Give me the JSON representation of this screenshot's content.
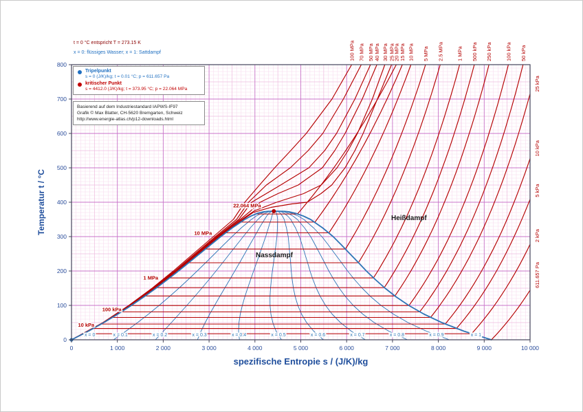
{
  "header_notes": {
    "line1": "t = 0 °C entspricht T = 273.15 K",
    "line2": "x = 0: flüssiges Wasser;   x = 1: Sattdampf"
  },
  "legend": {
    "triple": {
      "name": "Tripelpunkt",
      "detail": "s = 0 (J/K)/kg;  t = 0.01 °C;  p = 611.657 Pa",
      "color": "#1f6fc0"
    },
    "critical": {
      "name": "kritischer Punkt",
      "detail": "s = 4412.0 (J/K)/kg;  t = 373.95 °C;  p = 22.064 MPa",
      "color": "#c00000"
    }
  },
  "attribution": {
    "line1": "Basierend auf dem Industriestandard IAPWS-IF97",
    "line2": "Grafik © Max Blatter, CH-5620 Bremgarten, Schweiz",
    "line3": "http://www.energie-atlas.ch/p12-downloads.html"
  },
  "region_labels": {
    "superheated": "Heißdampf",
    "wet": "Nassdampf"
  },
  "chart_data": {
    "type": "line",
    "xlabel": "spezifische Entropie  s / (J/K)/kg",
    "ylabel": "Temperatur  t / °C",
    "xlim": [
      0,
      10000
    ],
    "ylim": [
      0,
      800
    ],
    "x_ticks": [
      0,
      1000,
      2000,
      3000,
      4000,
      5000,
      6000,
      7000,
      8000,
      9000,
      10000
    ],
    "x_tick_labels": [
      "0",
      "1 000",
      "2 000",
      "3 000",
      "4 000",
      "5 000",
      "6 000",
      "7 000",
      "8 000",
      "9 000",
      "10 000"
    ],
    "y_ticks": [
      0,
      100,
      200,
      300,
      400,
      500,
      600,
      700,
      800
    ],
    "y_tick_labels": [
      "0",
      "100",
      "200",
      "300",
      "400",
      "500",
      "600",
      "700",
      "800"
    ],
    "grid": true,
    "colors": {
      "isobar": "#b40000",
      "saturation": "#2e75b6",
      "grid_minor": "#f7d9ee",
      "grid_mid": "#eebbdf",
      "grid_major": "#c873c8",
      "axis_text": "#2a4d9b",
      "frame": "#44445a"
    },
    "saturation_dome": [
      [
        0.01,
        0,
        9156
      ],
      [
        25,
        367,
        8558
      ],
      [
        50,
        704,
        8076
      ],
      [
        75,
        1015,
        7681
      ],
      [
        100,
        1307,
        7354
      ],
      [
        125,
        1581,
        7077
      ],
      [
        150,
        1842,
        6838
      ],
      [
        175,
        2091,
        6626
      ],
      [
        200,
        2331,
        6431
      ],
      [
        225,
        2564,
        6253
      ],
      [
        250,
        2793,
        6072
      ],
      [
        275,
        3022,
        5892
      ],
      [
        300,
        3255,
        5706
      ],
      [
        325,
        3501,
        5480
      ],
      [
        350,
        3780,
        5211
      ],
      [
        360,
        3917,
        5053
      ],
      [
        368,
        4060,
        4880
      ],
      [
        372,
        4180,
        4750
      ],
      [
        373.5,
        4280,
        4640
      ],
      [
        373.95,
        4412,
        4412
      ]
    ],
    "triple_point": {
      "s": 0,
      "t": 0.01
    },
    "critical_point": {
      "s": 4412,
      "t": 373.95,
      "pressure_label": "22.064 MPa"
    },
    "quality_lines": {
      "values": [
        0,
        0.1,
        0.2,
        0.3,
        0.4,
        0.5,
        0.6,
        0.7,
        0.8,
        0.9,
        1
      ],
      "labels": [
        "x = 0",
        "x = 0.1",
        "x = 0.2",
        "x = 0.3",
        "x = 0.4",
        "x = 0.5",
        "x = 0.6",
        "x = 0.7",
        "x = 0.8",
        "x = 0.9",
        "x = 1"
      ]
    },
    "isobars_subcritical": [
      {
        "label": "611.657 Pa",
        "tsat": 0.01,
        "sf": 0,
        "sg": 9156,
        "s800": 11879
      },
      {
        "label": "2 kPa",
        "tsat": 17.5,
        "sf": 261,
        "sg": 8724,
        "s800": 11333
      },
      {
        "label": "5 kPa",
        "tsat": 32.9,
        "sf": 476,
        "sg": 8395,
        "s800": 10910
      },
      {
        "label": "10 kPa",
        "tsat": 45.8,
        "sf": 649,
        "sg": 8150,
        "s800": 10590
      },
      {
        "label": "25 kPa",
        "tsat": 65.0,
        "sf": 893,
        "sg": 7831,
        "s800": 10167
      },
      {
        "label": "50 kPa",
        "tsat": 81.3,
        "sf": 1091,
        "sg": 7594,
        "s800": 9847
      },
      {
        "label": "100 kPa",
        "tsat": 99.6,
        "sf": 1307,
        "sg": 7359,
        "s800": 9527
      },
      {
        "label": "250 kPa",
        "tsat": 127.4,
        "sf": 1607,
        "sg": 7053,
        "s800": 9104
      },
      {
        "label": "500 kPa",
        "tsat": 151.8,
        "sf": 1861,
        "sg": 6821,
        "s800": 8784
      },
      {
        "label": "1 MPa",
        "tsat": 179.9,
        "sf": 2138,
        "sg": 6585,
        "s800": 8464
      },
      {
        "label": "2.5 MPa",
        "tsat": 224.0,
        "sf": 2555,
        "sg": 6257,
        "s800": 8041
      },
      {
        "label": "5 MPa",
        "tsat": 263.9,
        "sf": 2920,
        "sg": 5973,
        "s800": 7721
      },
      {
        "label": "10 MPa",
        "tsat": 311.0,
        "sf": 3360,
        "sg": 5614,
        "s800": 7402
      },
      {
        "label": "15 MPa",
        "tsat": 342.2,
        "sf": 3685,
        "sg": 5310,
        "s800": 7215
      },
      {
        "label": "20 MPa",
        "tsat": 365.8,
        "sf": 4014,
        "sg": 4927,
        "s800": 7082
      }
    ],
    "isobars_supercritical": [
      {
        "label": "25 MPa",
        "points": [
          [
            0,
            0
          ],
          [
            50,
            700
          ],
          [
            100,
            1295
          ],
          [
            150,
            1824
          ],
          [
            200,
            2310
          ],
          [
            250,
            2770
          ],
          [
            300,
            3225
          ],
          [
            350,
            3745
          ],
          [
            370,
            3960
          ],
          [
            385,
            4350
          ],
          [
            395,
            4800
          ],
          [
            400,
            5140
          ],
          [
            425,
            5440
          ],
          [
            450,
            5675
          ],
          [
            500,
            5965
          ],
          [
            550,
            6180
          ],
          [
            600,
            6360
          ],
          [
            700,
            6670
          ],
          [
            800,
            6979
          ]
        ]
      },
      {
        "label": "30 MPa",
        "points": [
          [
            0,
            0
          ],
          [
            50,
            698
          ],
          [
            100,
            1290
          ],
          [
            150,
            1818
          ],
          [
            200,
            2300
          ],
          [
            250,
            2758
          ],
          [
            300,
            3210
          ],
          [
            350,
            3715
          ],
          [
            375,
            3990
          ],
          [
            400,
            4475
          ],
          [
            425,
            5060
          ],
          [
            450,
            5445
          ],
          [
            500,
            5790
          ],
          [
            550,
            6030
          ],
          [
            600,
            6235
          ],
          [
            700,
            6560
          ],
          [
            800,
            6833
          ]
        ]
      },
      {
        "label": "40 MPa",
        "points": [
          [
            0,
            0
          ],
          [
            50,
            695
          ],
          [
            100,
            1280
          ],
          [
            150,
            1805
          ],
          [
            200,
            2285
          ],
          [
            250,
            2740
          ],
          [
            300,
            3190
          ],
          [
            350,
            3680
          ],
          [
            375,
            3910
          ],
          [
            400,
            4115
          ],
          [
            425,
            4500
          ],
          [
            450,
            4945
          ],
          [
            500,
            5470
          ],
          [
            550,
            5740
          ],
          [
            600,
            5965
          ],
          [
            700,
            6340
          ],
          [
            800,
            6660
          ]
        ]
      },
      {
        "label": "50 MPa",
        "points": [
          [
            0,
            0
          ],
          [
            50,
            692
          ],
          [
            100,
            1275
          ],
          [
            150,
            1795
          ],
          [
            200,
            2270
          ],
          [
            250,
            2720
          ],
          [
            300,
            3168
          ],
          [
            350,
            3648
          ],
          [
            400,
            3930
          ],
          [
            450,
            4560
          ],
          [
            500,
            5175
          ],
          [
            550,
            5520
          ],
          [
            600,
            5780
          ],
          [
            700,
            6180
          ],
          [
            800,
            6520
          ]
        ]
      },
      {
        "label": "70 MPa",
        "points": [
          [
            0,
            0
          ],
          [
            50,
            688
          ],
          [
            100,
            1265
          ],
          [
            150,
            1780
          ],
          [
            200,
            2250
          ],
          [
            250,
            2692
          ],
          [
            300,
            3140
          ],
          [
            350,
            3600
          ],
          [
            400,
            3860
          ],
          [
            450,
            4250
          ],
          [
            500,
            4770
          ],
          [
            550,
            5160
          ],
          [
            600,
            5480
          ],
          [
            700,
            5930
          ],
          [
            800,
            6320
          ]
        ]
      },
      {
        "label": "100 MPa",
        "points": [
          [
            0,
            0
          ],
          [
            50,
            683
          ],
          [
            100,
            1250
          ],
          [
            150,
            1758
          ],
          [
            200,
            2220
          ],
          [
            250,
            2655
          ],
          [
            300,
            3095
          ],
          [
            350,
            3530
          ],
          [
            400,
            3780
          ],
          [
            450,
            4100
          ],
          [
            500,
            4430
          ],
          [
            550,
            4780
          ],
          [
            600,
            5120
          ],
          [
            700,
            5680
          ],
          [
            800,
            6110
          ]
        ]
      }
    ],
    "inline_labels": [
      {
        "text": "22.064 MPa",
        "s": 3830,
        "t": 385
      },
      {
        "text": "10 MPa",
        "s": 2870,
        "t": 305
      },
      {
        "text": "1 MPa",
        "s": 1730,
        "t": 175
      },
      {
        "text": "100 kPa",
        "s": 880,
        "t": 83
      },
      {
        "text": "10 kPa",
        "s": 320,
        "t": 38
      }
    ]
  }
}
